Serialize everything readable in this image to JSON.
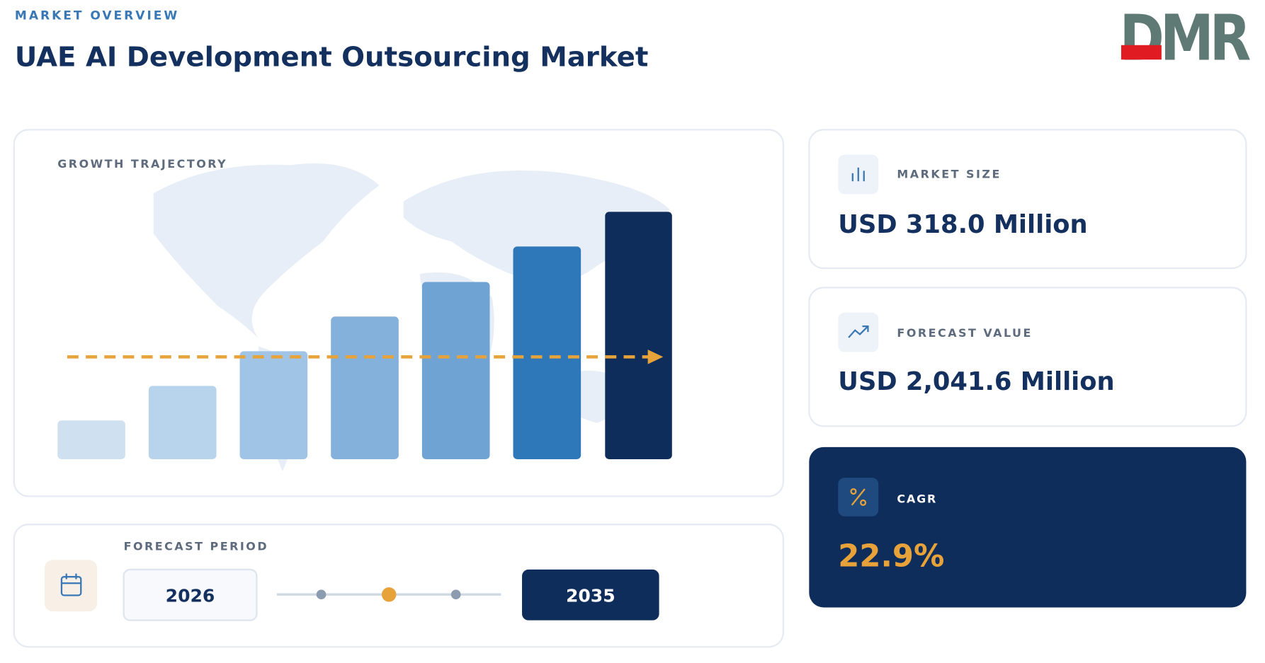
{
  "header": {
    "label": "MARKET OVERVIEW",
    "title": "UAE AI Development Outsourcing Market",
    "logo": "DMR"
  },
  "growth_panel": {
    "label": "GROWTH TRAJECTORY"
  },
  "forecast_period": {
    "label": "FORECAST PERIOD",
    "start": "2026",
    "end": "2035"
  },
  "metrics": {
    "market_size": {
      "label": "MARKET SIZE",
      "value": "USD 318.0 Million"
    },
    "forecast_value": {
      "label": "FORECAST VALUE",
      "value": "USD 2,041.6 Million"
    },
    "cagr": {
      "label": "CAGR",
      "value": "22.9%"
    }
  }
}
